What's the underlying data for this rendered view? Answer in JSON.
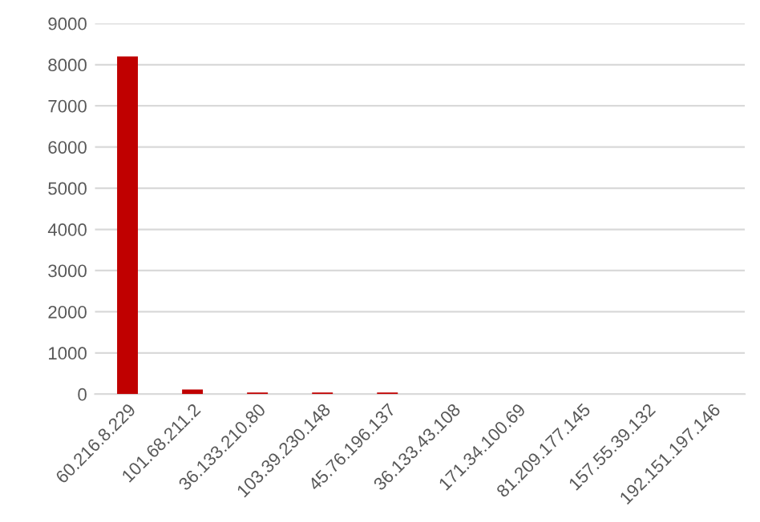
{
  "chart_data": {
    "type": "bar",
    "categories": [
      "60.216.8.229",
      "101.68.211.2",
      "36.133.210.80",
      "103.39.230.148",
      "45.76.196.137",
      "36.133.43.108",
      "171.34.100.69",
      "81.209.177.145",
      "157.55.39.132",
      "192.151.197.146"
    ],
    "values": [
      8200,
      110,
      40,
      40,
      40,
      0,
      0,
      0,
      0,
      0
    ],
    "color": "#c00000",
    "ylim": [
      0,
      9000
    ],
    "yticks": [
      0,
      1000,
      2000,
      3000,
      4000,
      5000,
      6000,
      7000,
      8000,
      9000
    ],
    "grid": "y",
    "legend": false
  }
}
